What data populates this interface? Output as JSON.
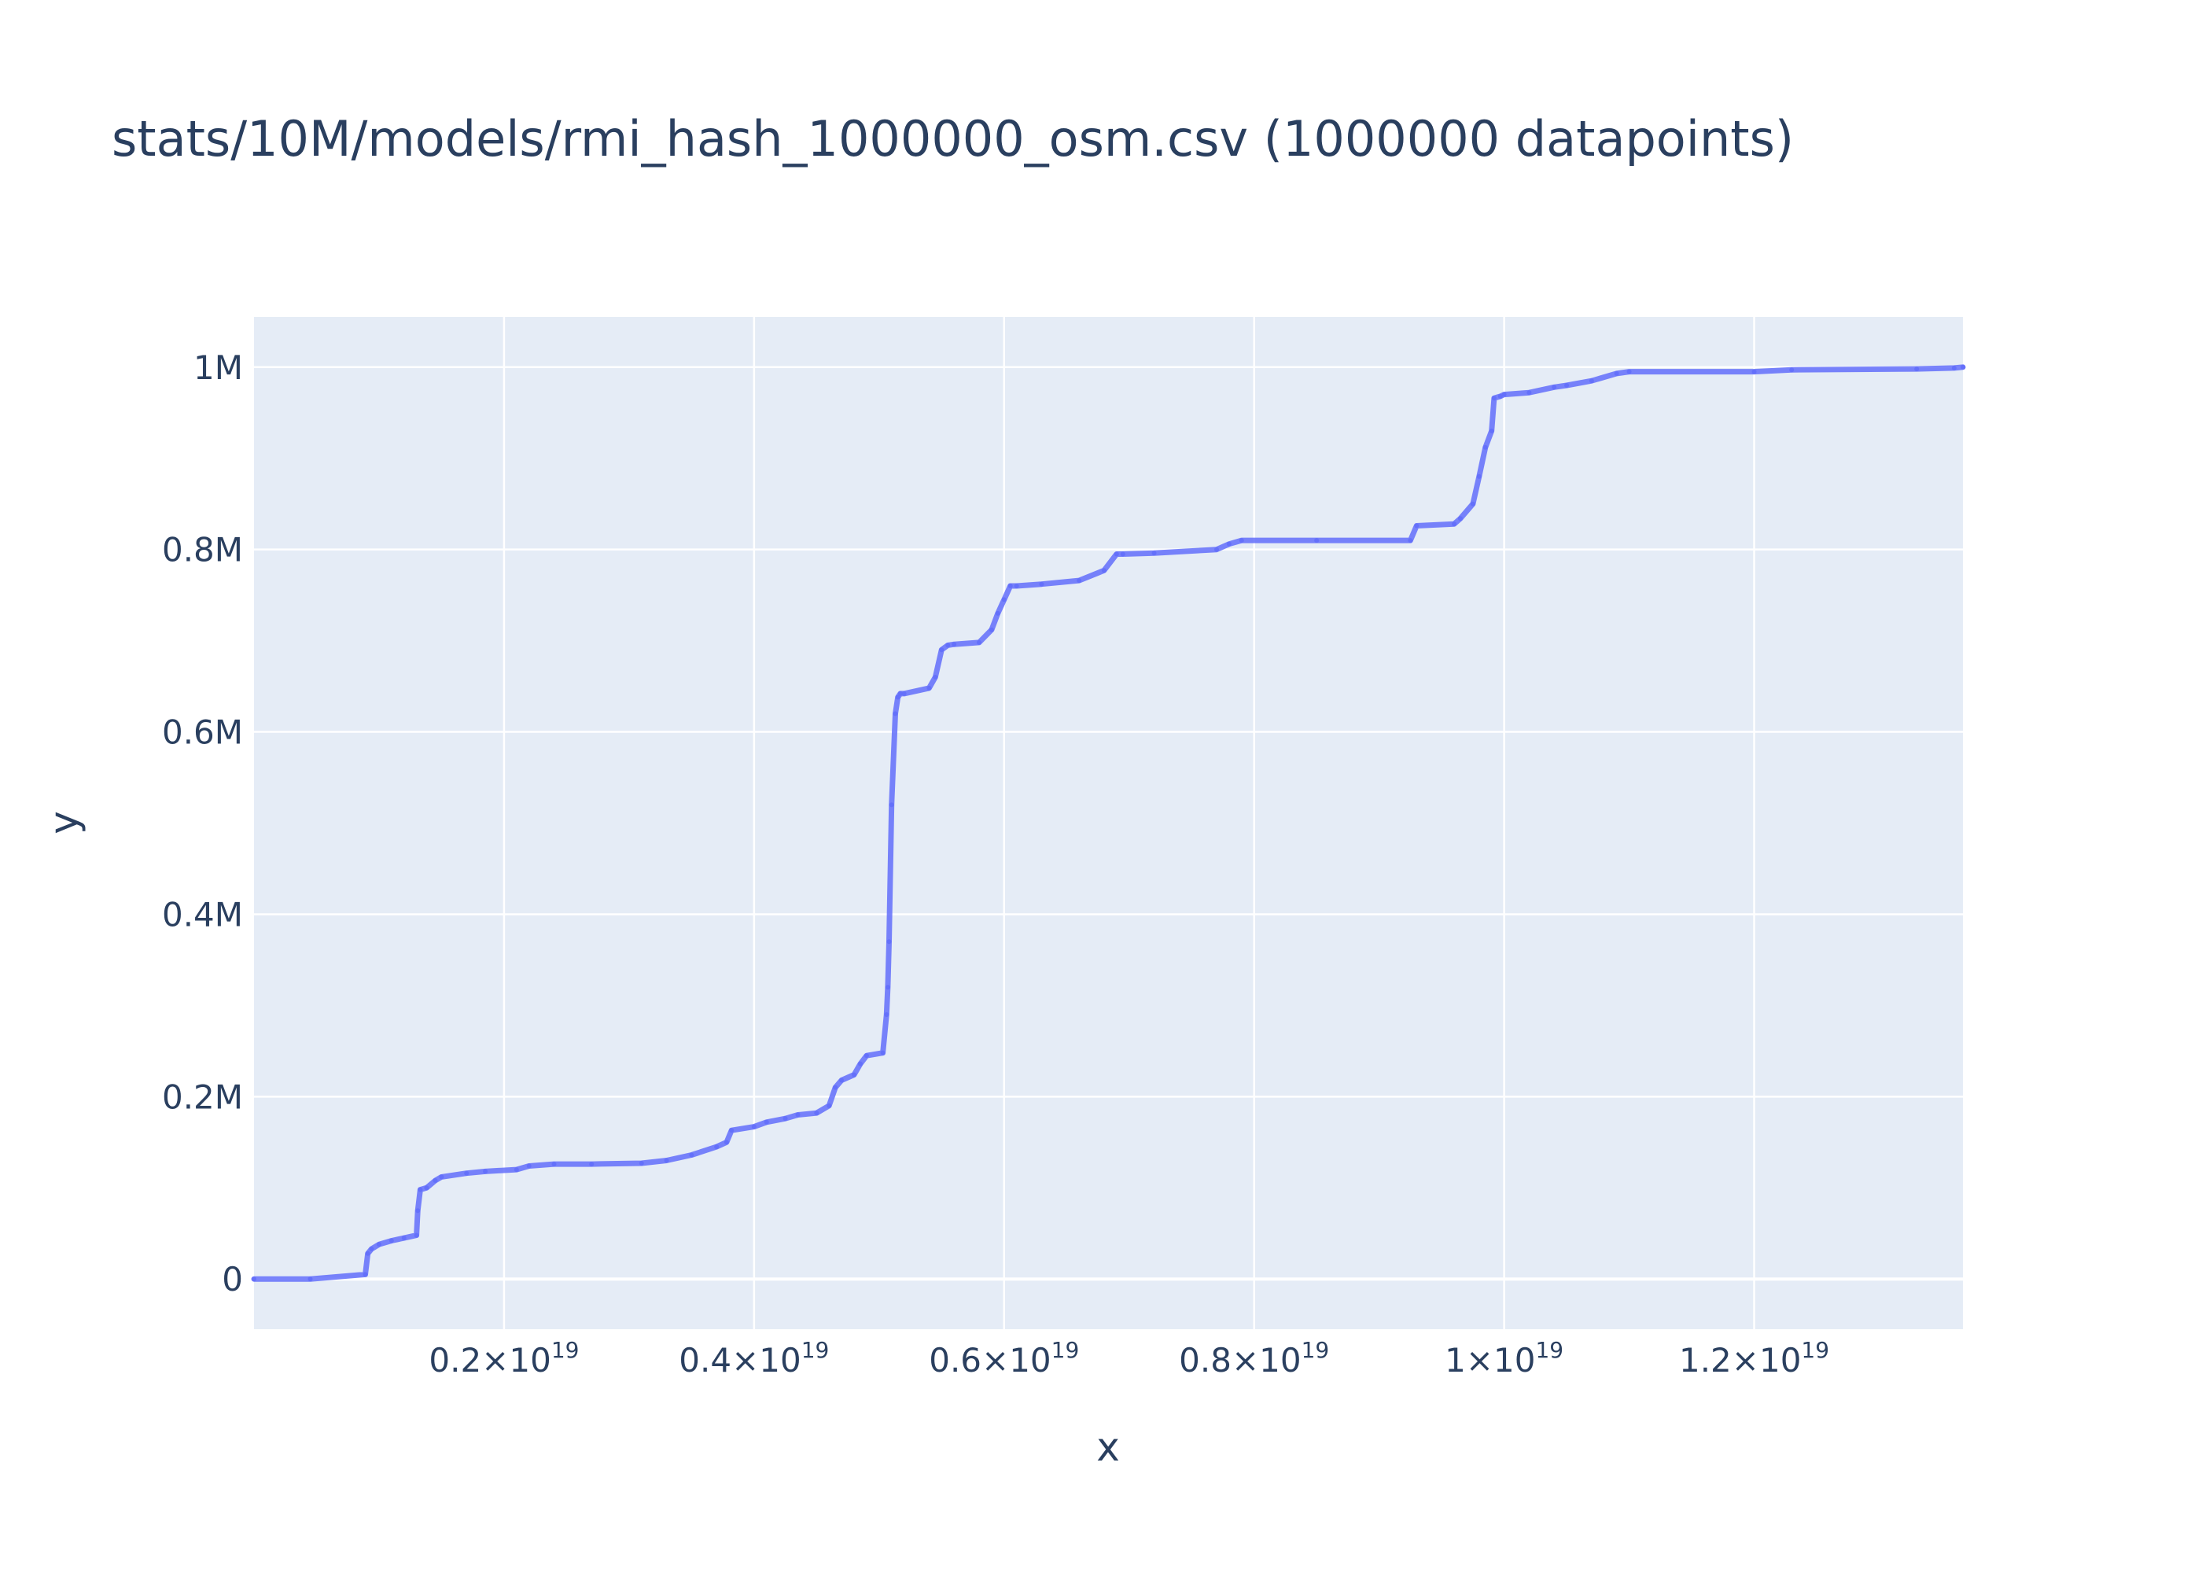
{
  "chart_data": {
    "type": "line",
    "title": "stats/10M/models/rmi_hash_1000000_osm.csv (1000000 datapoints)",
    "xlabel": "x",
    "ylabel": "y",
    "xlim": [
      0.0,
      1.367e+19
    ],
    "ylim": [
      -55000,
      1055000
    ],
    "grid": true,
    "x_ticks": [
      {
        "value": 2e+18,
        "mantissa": "0.2",
        "sep": "×10",
        "exp": "19"
      },
      {
        "value": 4e+18,
        "mantissa": "0.4",
        "sep": "×10",
        "exp": "19"
      },
      {
        "value": 6e+18,
        "mantissa": "0.6",
        "sep": "×10",
        "exp": "19"
      },
      {
        "value": 8e+18,
        "mantissa": "0.8",
        "sep": "×10",
        "exp": "19"
      },
      {
        "value": 1e+19,
        "mantissa": "1",
        "sep": "×10",
        "exp": "19"
      },
      {
        "value": 1.2e+19,
        "mantissa": "1.2",
        "sep": "×10",
        "exp": "19"
      }
    ],
    "y_ticks": [
      {
        "value": 0,
        "label": "0"
      },
      {
        "value": 200000,
        "label": "0.2M"
      },
      {
        "value": 400000,
        "label": "0.4M"
      },
      {
        "value": 600000,
        "label": "0.6M"
      },
      {
        "value": 800000,
        "label": "0.8M"
      },
      {
        "value": 1000000,
        "label": "1M"
      }
    ],
    "series": [
      {
        "color": "#636efa",
        "x": [
          0.0,
          4.5e+17,
          8.9e+17,
          9.1e+17,
          9.4e+17,
          1e+18,
          1.1e+18,
          1.2e+18,
          1.3e+18,
          1.31e+18,
          1.33e+18,
          1.38e+18,
          1.45e+18,
          1.5e+18,
          1.7e+18,
          1.85e+18,
          2.1e+18,
          2.2e+18,
          2.4e+18,
          2.7e+18,
          3.1e+18,
          3.3e+18,
          3.5e+18,
          3.7e+18,
          3.78e+18,
          3.82e+18,
          4e+18,
          4.1e+18,
          4.25e+18,
          4.35e+18,
          4.5e+18,
          4.6e+18,
          4.65e+18,
          4.7e+18,
          4.8e+18,
          4.85e+18,
          4.9e+18,
          5.03e+18,
          5.06e+18,
          5.07e+18,
          5.08e+18,
          5.1e+18,
          5.13e+18,
          5.15e+18,
          5.17e+18,
          5.2e+18,
          5.4e+18,
          5.45e+18,
          5.5e+18,
          5.55e+18,
          5.6e+18,
          5.8e+18,
          5.9e+18,
          5.95e+18,
          6e+18,
          6.05e+18,
          6.1e+18,
          6.3e+18,
          6.6e+18,
          6.8e+18,
          6.9e+18,
          6.95e+18,
          7.2e+18,
          7.7e+18,
          7.8e+18,
          7.9e+18,
          8.5e+18,
          9.25e+18,
          9.3e+18,
          9.6e+18,
          9.65e+18,
          9.75e+18,
          9.8e+18,
          9.85e+18,
          9.9e+18,
          9.92e+18,
          9.97e+18,
          1e+19,
          1.02e+19,
          1.04e+19,
          1.05e+19,
          1.07e+19,
          1.09e+19,
          1.1e+19,
          1.2e+19,
          1.23e+19,
          1.33e+19,
          1.36e+19,
          1.367e+19
        ],
        "y": [
          0,
          0,
          5000,
          28000,
          33000,
          38000,
          42000,
          45000,
          48000,
          75000,
          98000,
          100000,
          108000,
          112000,
          116000,
          118000,
          120000,
          124000,
          126000,
          126000,
          127000,
          130000,
          136000,
          145000,
          150000,
          163000,
          167000,
          172000,
          176000,
          180000,
          182000,
          190000,
          210000,
          218000,
          224000,
          236000,
          245000,
          248000,
          290000,
          320000,
          370000,
          520000,
          620000,
          638000,
          642000,
          642000,
          648000,
          660000,
          690000,
          695000,
          696000,
          698000,
          712000,
          730000,
          745000,
          760000,
          760000,
          762000,
          766000,
          777000,
          795000,
          795000,
          796000,
          800000,
          806000,
          810000,
          810000,
          810000,
          826000,
          828000,
          834000,
          850000,
          880000,
          912000,
          930000,
          966000,
          968000,
          970000,
          972000,
          978000,
          980000,
          985000,
          993000,
          995000,
          995000,
          997000,
          998000,
          999000,
          1000000
        ]
      }
    ]
  }
}
